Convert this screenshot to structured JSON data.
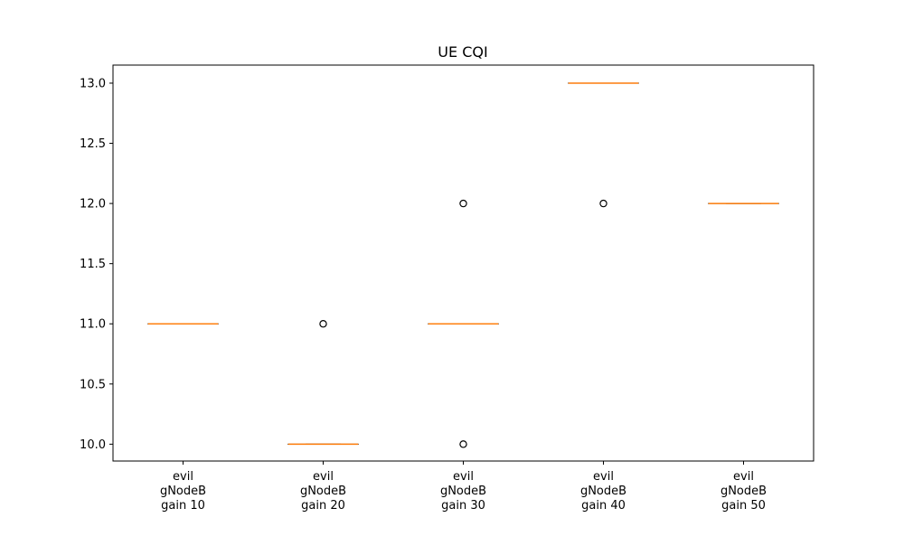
{
  "chart_data": {
    "type": "box",
    "title": "UE CQI",
    "xlabel": "",
    "ylabel": "",
    "ylim": [
      9.86,
      13.15
    ],
    "yticks": [
      "10.0",
      "10.5",
      "11.0",
      "11.5",
      "12.0",
      "12.5",
      "13.0"
    ],
    "categories": [
      [
        "evil",
        "gNodeB",
        "gain 10"
      ],
      [
        "evil",
        "gNodeB",
        "gain 20"
      ],
      [
        "evil",
        "gNodeB",
        "gain 30"
      ],
      [
        "evil",
        "gNodeB",
        "gain 40"
      ],
      [
        "evil",
        "gNodeB",
        "gain 50"
      ]
    ],
    "boxes": [
      {
        "q1": 11,
        "median": 11,
        "q3": 11,
        "whisker_low": 11,
        "whisker_high": 11,
        "outliers": []
      },
      {
        "q1": 10,
        "median": 10,
        "q3": 10,
        "whisker_low": 10,
        "whisker_high": 10,
        "outliers": [
          11
        ]
      },
      {
        "q1": 11,
        "median": 11,
        "q3": 11,
        "whisker_low": 11,
        "whisker_high": 11,
        "outliers": [
          12,
          10
        ]
      },
      {
        "q1": 13,
        "median": 13,
        "q3": 13,
        "whisker_low": 13,
        "whisker_high": 13,
        "outliers": [
          12
        ]
      },
      {
        "q1": 12,
        "median": 12,
        "q3": 12,
        "whisker_low": 12,
        "whisker_high": 12,
        "outliers": []
      }
    ],
    "median_color": "#ff7f0e",
    "box_color": "#000000",
    "grid": false,
    "legend": "none"
  }
}
